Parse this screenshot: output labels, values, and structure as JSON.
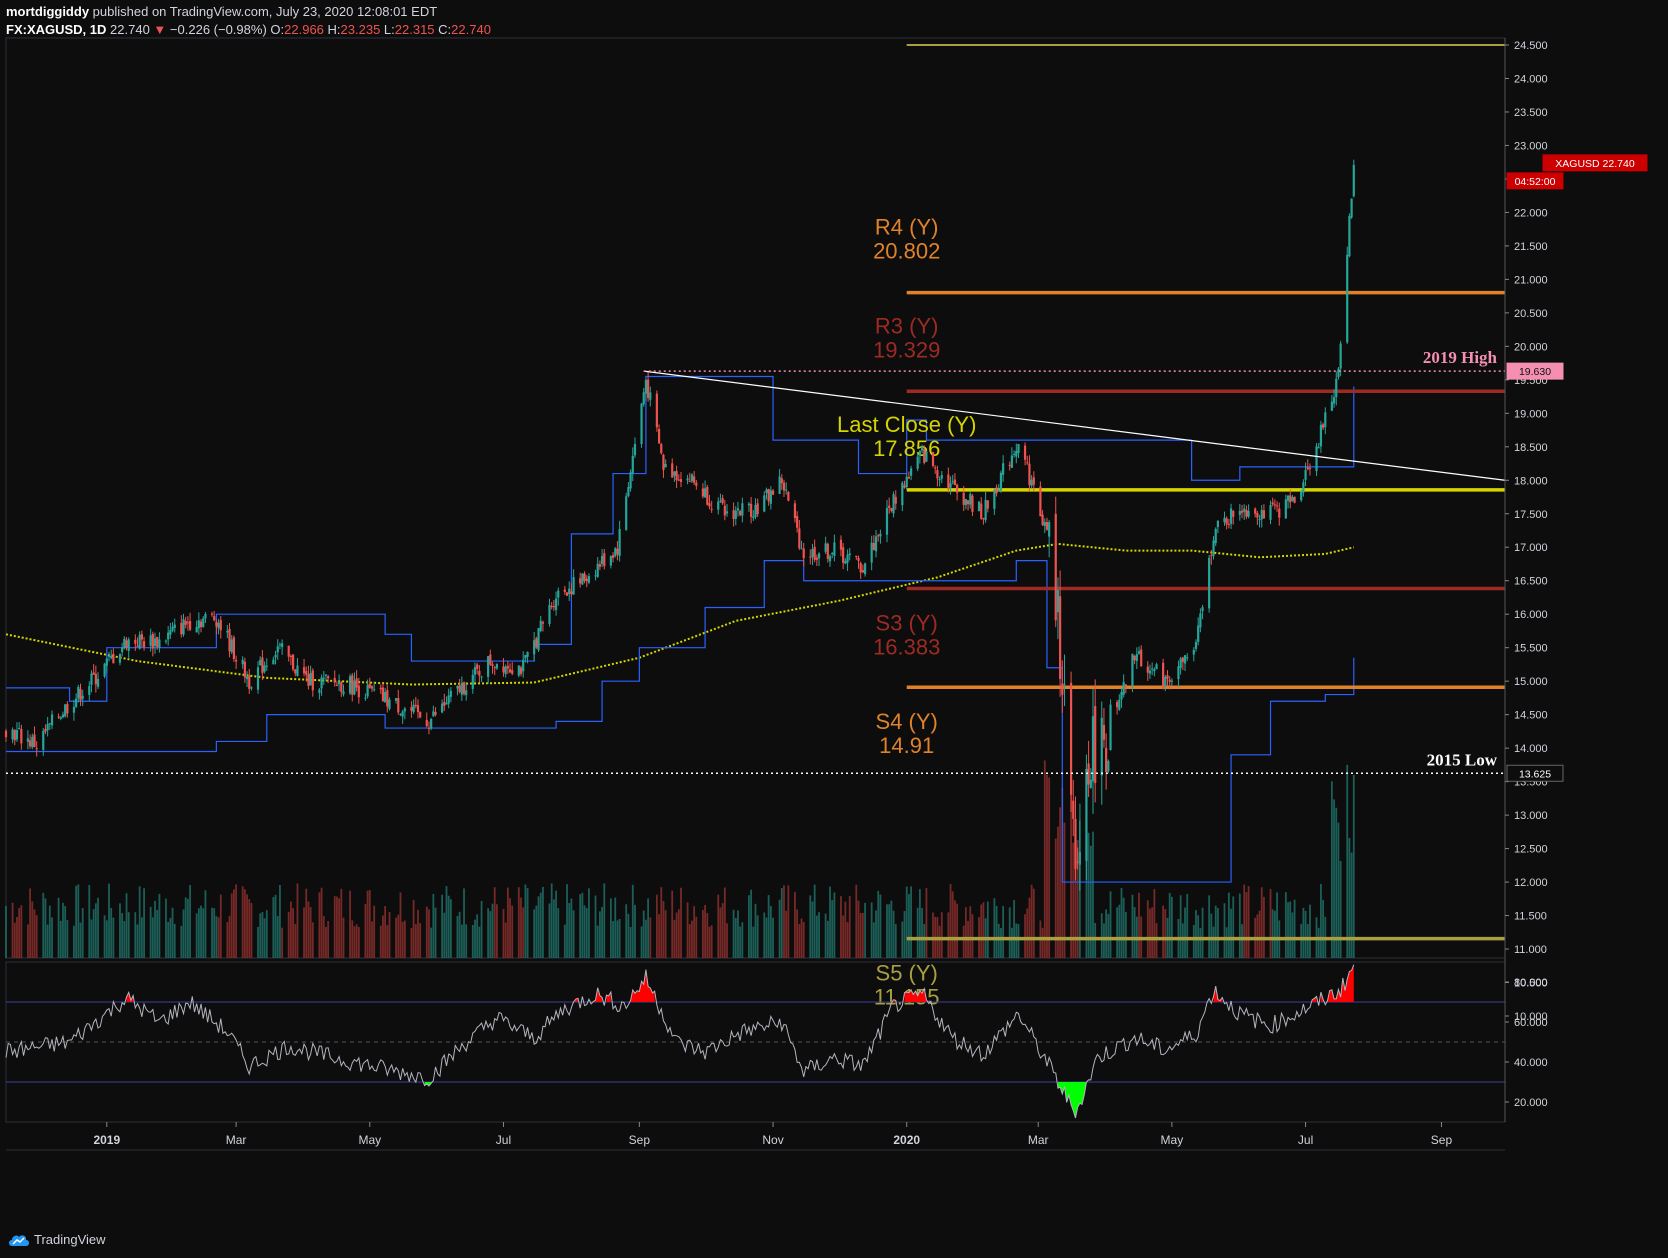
{
  "header": {
    "author": "mortdiggiddy",
    "published_text": "published on TradingView.com, July 23, 2020 12:08:01 EDT",
    "symbol": "FX:XAGUSD, 1D",
    "last": "22.740",
    "change": "−0.226 (−0.98%)",
    "open_label": "O:",
    "open": "22.966",
    "high_label": "H:",
    "high": "23.235",
    "low_label": "L:",
    "low": "22.315",
    "close_label": "C:",
    "close": "22.740"
  },
  "footer": {
    "brand": "TradingView"
  },
  "colors": {
    "background": "#0d0d0d",
    "up": "#26a69a",
    "down": "#ef5350",
    "ma": "#d4d400",
    "channel": "#2962ff",
    "r4": "#e0822a",
    "r3": "#9e2a24",
    "last_close": "#d4d400",
    "s3": "#9e2a24",
    "s4": "#e0822a",
    "s5": "#a8a040",
    "rsi_line": "#b2b5be",
    "rsi_over": "#ff0000",
    "rsi_under": "#00ff00"
  },
  "chart_data": {
    "type": "candlestick",
    "x_axis": {
      "ticks": [
        "2019",
        "Mar",
        "May",
        "Jul",
        "Sep",
        "Nov",
        "2020",
        "Mar",
        "May",
        "Jul",
        "Sep"
      ],
      "bold_ticks": [
        "2019",
        "2020"
      ],
      "start": "2018-11-16",
      "end": "2020-09-30"
    },
    "y_axis": {
      "min": 10.0,
      "max": 24.5,
      "step": 0.5,
      "ticks": [
        "24.500",
        "24.000",
        "23.500",
        "23.000",
        "22.500",
        "22.000",
        "21.500",
        "21.000",
        "20.500",
        "20.000",
        "19.500",
        "19.000",
        "18.500",
        "18.000",
        "17.500",
        "17.000",
        "16.500",
        "16.000",
        "15.500",
        "15.000",
        "14.500",
        "14.000",
        "13.500",
        "13.000",
        "12.500",
        "12.000",
        "11.500",
        "11.000",
        "10.500",
        "10.000"
      ]
    },
    "price_tags": [
      {
        "label": "XAGUSD",
        "value": "22.740",
        "color": "#cc0000"
      },
      {
        "label": "",
        "value": "04:52:00",
        "color": "#cc0000"
      },
      {
        "label": "",
        "value": "19.630",
        "color": "#f48fb1"
      },
      {
        "label": "",
        "value": "13.625",
        "color": "#ffffff"
      }
    ],
    "levels": [
      {
        "name": "R4 (Y)",
        "value": 20.802,
        "label_value": "20.802",
        "color": "#e0822a",
        "date_start": "2020-01-01"
      },
      {
        "name": "R3 (Y)",
        "value": 19.329,
        "label_value": "19.329",
        "color": "#9e2a24",
        "date_start": "2020-01-01"
      },
      {
        "name": "Last Close (Y)",
        "value": 17.856,
        "label_value": "17.856",
        "color": "#d4d400",
        "date_start": "2020-01-01"
      },
      {
        "name": "S3 (Y)",
        "value": 16.383,
        "label_value": "16.383",
        "color": "#9e2a24",
        "date_start": "2020-01-01"
      },
      {
        "name": "S4 (Y)",
        "value": 14.91,
        "label_value": "14.91",
        "color": "#e0822a",
        "date_start": "2020-01-01"
      },
      {
        "name": "S5 (Y)",
        "value": 11.155,
        "label_value": "11.155",
        "color": "#a8a040",
        "date_start": "2020-01-01"
      }
    ],
    "top_level": {
      "value": 24.5,
      "color": "#a8a040",
      "date_start": "2020-01-01"
    },
    "annotations": [
      {
        "text": "2019 High",
        "value": 19.63,
        "color": "#f48fb1",
        "date_start": "2019-09-03"
      },
      {
        "text": "2015 Low",
        "value": 13.625,
        "color": "#ffffff",
        "date_start": "2018-11-16"
      }
    ],
    "trendline": {
      "from": [
        "2019-09-03",
        19.63
      ],
      "to": [
        "2020-09-30",
        18.0
      ],
      "color": "#ffffff"
    },
    "price_path": [
      [
        "2018-11-16",
        14.3
      ],
      [
        "2018-11-30",
        14.05
      ],
      [
        "2018-12-10",
        14.5
      ],
      [
        "2018-12-28",
        15.1
      ],
      [
        "2019-01-10",
        15.6
      ],
      [
        "2019-01-25",
        15.6
      ],
      [
        "2019-02-08",
        15.9
      ],
      [
        "2019-02-20",
        15.95
      ],
      [
        "2019-03-07",
        15.0
      ],
      [
        "2019-03-20",
        15.5
      ],
      [
        "2019-04-03",
        15.0
      ],
      [
        "2019-04-22",
        14.95
      ],
      [
        "2019-05-10",
        14.7
      ],
      [
        "2019-05-28",
        14.4
      ],
      [
        "2019-06-10",
        14.85
      ],
      [
        "2019-06-25",
        15.3
      ],
      [
        "2019-07-10",
        15.2
      ],
      [
        "2019-07-25",
        16.3
      ],
      [
        "2019-08-06",
        16.5
      ],
      [
        "2019-08-22",
        17.0
      ],
      [
        "2019-09-04",
        19.5
      ],
      [
        "2019-09-12",
        18.2
      ],
      [
        "2019-09-25",
        18.0
      ],
      [
        "2019-10-10",
        17.5
      ],
      [
        "2019-10-25",
        17.6
      ],
      [
        "2019-11-05",
        18.0
      ],
      [
        "2019-11-15",
        16.9
      ],
      [
        "2019-11-29",
        16.95
      ],
      [
        "2019-12-12",
        16.7
      ],
      [
        "2019-12-26",
        17.7
      ],
      [
        "2020-01-08",
        18.4
      ],
      [
        "2020-01-22",
        17.9
      ],
      [
        "2020-02-05",
        17.5
      ],
      [
        "2020-02-21",
        18.6
      ],
      [
        "2020-03-06",
        17.1
      ],
      [
        "2020-03-12",
        15.2
      ],
      [
        "2020-03-18",
        11.9
      ],
      [
        "2020-03-24",
        13.9
      ],
      [
        "2020-04-03",
        14.2
      ],
      [
        "2020-04-14",
        15.4
      ],
      [
        "2020-04-28",
        15.0
      ],
      [
        "2020-05-12",
        15.5
      ],
      [
        "2020-05-20",
        17.2
      ],
      [
        "2020-06-01",
        17.6
      ],
      [
        "2020-06-15",
        17.5
      ],
      [
        "2020-06-26",
        17.7
      ],
      [
        "2020-07-07",
        18.6
      ],
      [
        "2020-07-14",
        19.3
      ],
      [
        "2020-07-17",
        20.0
      ],
      [
        "2020-07-20",
        21.4
      ],
      [
        "2020-07-23",
        22.74
      ]
    ],
    "ma_path": [
      [
        "2018-11-16",
        15.7
      ],
      [
        "2019-01-15",
        15.3
      ],
      [
        "2019-03-15",
        15.05
      ],
      [
        "2019-05-20",
        14.95
      ],
      [
        "2019-07-15",
        14.98
      ],
      [
        "2019-09-01",
        15.35
      ],
      [
        "2019-10-15",
        15.9
      ],
      [
        "2019-12-01",
        16.2
      ],
      [
        "2020-01-15",
        16.55
      ],
      [
        "2020-02-20",
        16.95
      ],
      [
        "2020-03-10",
        17.05
      ],
      [
        "2020-04-10",
        16.95
      ],
      [
        "2020-05-10",
        16.95
      ],
      [
        "2020-06-10",
        16.85
      ],
      [
        "2020-07-10",
        16.9
      ],
      [
        "2020-07-23",
        17.0
      ]
    ],
    "channel_upper": [
      [
        "2018-11-16",
        14.9
      ],
      [
        "2018-12-15",
        14.7
      ],
      [
        "2019-01-01",
        15.5
      ],
      [
        "2019-02-20",
        16.0
      ],
      [
        "2019-05-08",
        15.7
      ],
      [
        "2019-05-20",
        15.3
      ],
      [
        "2019-06-25",
        15.3
      ],
      [
        "2019-07-15",
        15.55
      ],
      [
        "2019-08-01",
        17.2
      ],
      [
        "2019-08-20",
        18.1
      ],
      [
        "2019-09-04",
        19.55
      ],
      [
        "2019-10-28",
        19.55
      ],
      [
        "2019-11-01",
        18.6
      ],
      [
        "2019-12-10",
        18.1
      ],
      [
        "2020-01-01",
        18.9
      ],
      [
        "2020-01-10",
        18.6
      ],
      [
        "2020-02-20",
        18.6
      ],
      [
        "2020-03-01",
        18.6
      ],
      [
        "2020-05-05",
        18.6
      ],
      [
        "2020-05-10",
        18.0
      ],
      [
        "2020-06-01",
        18.2
      ],
      [
        "2020-07-05",
        18.2
      ],
      [
        "2020-07-23",
        19.4
      ]
    ],
    "channel_lower": [
      [
        "2018-11-16",
        13.95
      ],
      [
        "2019-01-15",
        13.95
      ],
      [
        "2019-02-20",
        14.1
      ],
      [
        "2019-03-15",
        14.5
      ],
      [
        "2019-05-08",
        14.3
      ],
      [
        "2019-07-01",
        14.3
      ],
      [
        "2019-07-25",
        14.4
      ],
      [
        "2019-08-15",
        15.0
      ],
      [
        "2019-09-01",
        15.5
      ],
      [
        "2019-10-01",
        16.1
      ],
      [
        "2019-10-28",
        16.8
      ],
      [
        "2019-11-15",
        16.5
      ],
      [
        "2020-02-20",
        16.8
      ],
      [
        "2020-03-05",
        15.2
      ],
      [
        "2020-03-12",
        12.0
      ],
      [
        "2020-05-20",
        12.0
      ],
      [
        "2020-05-28",
        13.9
      ],
      [
        "2020-06-15",
        14.7
      ],
      [
        "2020-07-10",
        14.8
      ],
      [
        "2020-07-23",
        15.35
      ]
    ],
    "rsi": {
      "y_ticks": [
        "80.000",
        "60.000",
        "40.000",
        "20.000"
      ],
      "min": 10,
      "max": 90,
      "upper": 70,
      "mid": 50,
      "lower": 30,
      "path": [
        [
          "2018-11-16",
          45
        ],
        [
          "2018-12-15",
          50
        ],
        [
          "2019-01-10",
          72
        ],
        [
          "2019-01-25",
          60
        ],
        [
          "2019-02-08",
          70
        ],
        [
          "2019-02-25",
          55
        ],
        [
          "2019-03-07",
          38
        ],
        [
          "2019-03-25",
          48
        ],
        [
          "2019-04-15",
          42
        ],
        [
          "2019-05-10",
          36
        ],
        [
          "2019-05-28",
          32
        ],
        [
          "2019-06-12",
          48
        ],
        [
          "2019-06-28",
          62
        ],
        [
          "2019-07-15",
          52
        ],
        [
          "2019-07-28",
          66
        ],
        [
          "2019-08-12",
          74
        ],
        [
          "2019-08-25",
          68
        ],
        [
          "2019-09-04",
          82
        ],
        [
          "2019-09-18",
          50
        ],
        [
          "2019-10-01",
          45
        ],
        [
          "2019-10-18",
          55
        ],
        [
          "2019-11-05",
          60
        ],
        [
          "2019-11-15",
          35
        ],
        [
          "2019-11-29",
          42
        ],
        [
          "2019-12-12",
          38
        ],
        [
          "2019-12-26",
          68
        ],
        [
          "2020-01-08",
          74
        ],
        [
          "2020-01-22",
          52
        ],
        [
          "2020-02-05",
          44
        ],
        [
          "2020-02-21",
          64
        ],
        [
          "2020-03-06",
          38
        ],
        [
          "2020-03-18",
          14
        ],
        [
          "2020-03-28",
          42
        ],
        [
          "2020-04-14",
          52
        ],
        [
          "2020-04-28",
          46
        ],
        [
          "2020-05-12",
          54
        ],
        [
          "2020-05-20",
          76
        ],
        [
          "2020-06-01",
          64
        ],
        [
          "2020-06-15",
          58
        ],
        [
          "2020-06-26",
          64
        ],
        [
          "2020-07-07",
          70
        ],
        [
          "2020-07-17",
          76
        ],
        [
          "2020-07-23",
          88
        ]
      ]
    }
  }
}
